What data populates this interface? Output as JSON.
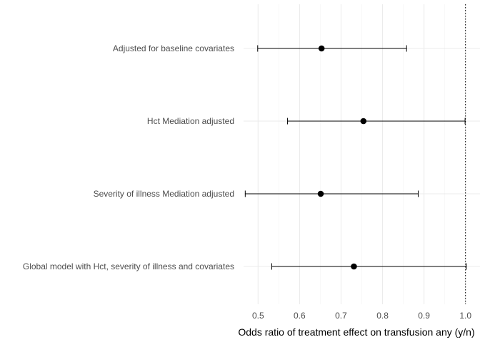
{
  "chart_data": {
    "type": "forest",
    "title": "",
    "xlabel": "Odds ratio of treatment effect on transfusion any (y/n)",
    "ylabel": "",
    "xlim": [
      0.465,
      1.035
    ],
    "x_ticks": [
      0.5,
      0.6,
      0.7,
      0.8,
      0.9,
      1.0
    ],
    "x_tick_labels": [
      "0.5",
      "0.6",
      "0.7",
      "0.8",
      "0.9",
      "1.0"
    ],
    "reference_line": 1.0,
    "grid": true,
    "categories": [
      "Adjusted for baseline covariates",
      "Hct Mediation adjusted",
      "Severity of illness Mediation adjusted",
      "Global model with Hct, severity of illness and covariates"
    ],
    "estimates": [
      0.653,
      0.754,
      0.651,
      0.731
    ],
    "ci_lower": [
      0.499,
      0.571,
      0.469,
      0.533
    ],
    "ci_upper": [
      0.858,
      0.999,
      0.886,
      1.002
    ],
    "colors": {
      "point": "#000000",
      "errorbar": "#000000",
      "grid": "#ebebeb",
      "reference": "#000000"
    }
  }
}
